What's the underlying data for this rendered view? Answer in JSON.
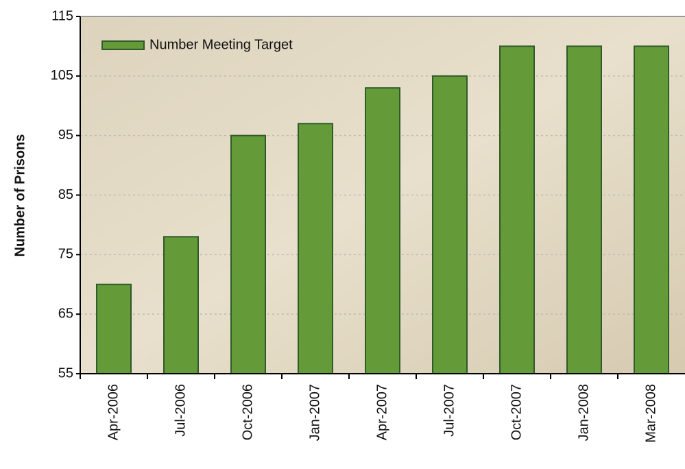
{
  "chart_data": {
    "type": "bar",
    "y_label": "Number of Prisons",
    "categories": [
      "Apr-2006",
      "Jul-2006",
      "Oct-2006",
      "Jan-2007",
      "Apr-2007",
      "Jul-2007",
      "Oct-2007",
      "Jan-2008",
      "Mar-2008"
    ],
    "series": [
      {
        "name": "Number Meeting Target",
        "color": "#659a38",
        "values": [
          70,
          78,
          95,
          97,
          103,
          105,
          110,
          110,
          110
        ]
      }
    ],
    "ylim": [
      55,
      115
    ],
    "yticks": [
      55,
      65,
      75,
      85,
      95,
      105,
      115
    ],
    "grid": true,
    "legend": "upper left"
  }
}
